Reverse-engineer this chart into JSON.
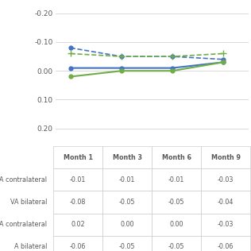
{
  "x_labels": [
    "Month 1",
    "Month 3",
    "Month 6",
    "Month 9"
  ],
  "x_positions": [
    0,
    1,
    2,
    3
  ],
  "lines": {
    "blue_contralateral": {
      "values": [
        -0.01,
        -0.01,
        -0.01,
        -0.03
      ],
      "color": "#4472c4",
      "linestyle": "solid",
      "marker": "o",
      "label": "VA contralateral"
    },
    "blue_bilateral": {
      "values": [
        -0.08,
        -0.05,
        -0.05,
        -0.04
      ],
      "color": "#4472c4",
      "linestyle": "dashed",
      "marker": "o",
      "label": "VA bilateral"
    },
    "green_contralateral": {
      "values": [
        0.02,
        0.0,
        0.0,
        -0.03
      ],
      "color": "#70ad47",
      "linestyle": "solid",
      "marker": "o",
      "label": "A contralateral"
    },
    "green_bilateral": {
      "values": [
        -0.06,
        -0.05,
        -0.05,
        -0.06
      ],
      "color": "#70ad47",
      "linestyle": "dashed",
      "marker": "+",
      "label": "A bilateral"
    }
  },
  "ylim": [
    0.22,
    -0.22
  ],
  "yticks": [
    0.2,
    0.1,
    0.0,
    -0.1,
    -0.2
  ],
  "ytick_labels": [
    "0.20",
    "0.10",
    "0.00",
    "-0.10",
    "-0.20"
  ],
  "background_color": "#ffffff",
  "grid_color": "#d9d9d9",
  "table_rows": [
    "VA contralateral",
    "VA bilateral",
    "A contralateral",
    "A bilateral"
  ],
  "table_cols": [
    "Month 1",
    "Month 3",
    "Month 6",
    "Month 9"
  ],
  "table_data": [
    [
      "-0.01",
      "-0.01",
      "-0.01",
      "-0.03"
    ],
    [
      "-0.08",
      "-0.05",
      "-0.05",
      "-0.04"
    ],
    [
      "0.02",
      "0.00",
      "0.00",
      "-0.03"
    ],
    [
      "-0.06",
      "-0.05",
      "-0.05",
      "-0.06"
    ]
  ]
}
